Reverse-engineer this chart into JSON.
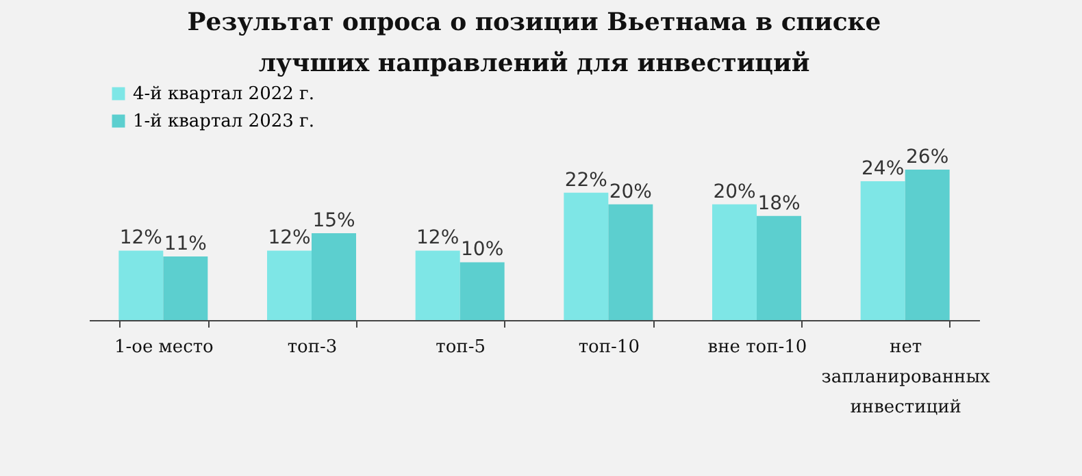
{
  "chart_data": {
    "type": "bar",
    "title": "Результат опроса о позиции Вьетнама в списке лучших направлений для инвестиций",
    "categories": [
      "1-ое место",
      "топ-3",
      "топ-5",
      "топ-10",
      "вне топ-10",
      "нет запланированных инвестиций"
    ],
    "series": [
      {
        "name": "4-й квартал 2022 г.",
        "color": "#7ee6e6",
        "values": [
          12,
          12,
          12,
          22,
          20,
          24
        ],
        "value_labels": [
          "12%",
          "12%",
          "12%",
          "22%",
          "20%",
          "24%"
        ]
      },
      {
        "name": "1-й квартал 2023 г.",
        "color": "#5ccfcf",
        "values": [
          11,
          15,
          10,
          20,
          18,
          26
        ],
        "value_labels": [
          "11%",
          "15%",
          "10%",
          "20%",
          "18%",
          "26%"
        ]
      }
    ],
    "legend": "top left",
    "grid": false
  }
}
